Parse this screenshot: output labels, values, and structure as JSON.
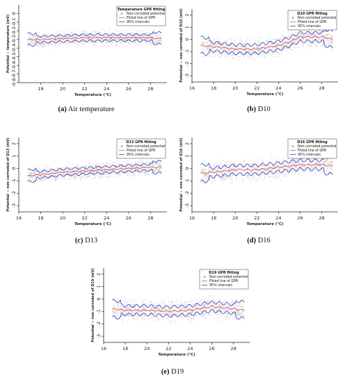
{
  "chart_data": [
    {
      "type": "scatter",
      "caption": {
        "label": "(a)",
        "text": "Air temperature"
      },
      "legend": {
        "title": "Temperature GPR fitting",
        "position": "top-right",
        "items": [
          "Non-corroded potential",
          "Fitted line of GPR",
          "95% intervals"
        ]
      },
      "xlabel": "Temperature (℃)",
      "ylabel": "Potential − temperature (mV)",
      "xlim": [
        16,
        29.5
      ],
      "ylim": [
        -0.8,
        0.1
      ],
      "xticks": [
        "18",
        "20",
        "22",
        "24",
        "26",
        "28"
      ],
      "yticks": [
        "-0.8",
        "-0.7",
        "-0.6",
        "-0.5",
        "-0.4",
        "-0.3",
        "-0.2",
        "-0.1",
        "0"
      ],
      "ytick_values": [
        -0.8,
        -0.7,
        -0.6,
        -0.5,
        -0.4,
        -0.3,
        -0.2,
        -0.1,
        0
      ],
      "x_range": [
        16.8,
        29.0
      ],
      "fit": {
        "x": [
          16.8,
          18,
          20,
          22,
          24,
          26,
          28,
          29
        ],
        "y": [
          -0.3,
          -0.3,
          -0.29,
          -0.28,
          -0.28,
          -0.28,
          -0.28,
          -0.29
        ]
      },
      "band_width": 0.035,
      "scatter_spread": 0.07
    },
    {
      "type": "scatter",
      "caption": {
        "label": "(b)",
        "text": "D10"
      },
      "legend": {
        "title": "D10 GPR fitting",
        "position": "top-right",
        "items": [
          "Non-corroded potential",
          "Fitted line of GPR",
          "95% intervals"
        ]
      },
      "xlabel": "Temperature (℃)",
      "ylabel": "Potential − non corroded of D10 (mV)",
      "xlim": [
        16,
        29.5
      ],
      "ylim": [
        -3.5,
        2.5
      ],
      "xticks": [
        "16",
        "18",
        "20",
        "22",
        "24",
        "26",
        "28"
      ],
      "yticks": [
        "-3",
        "-2",
        "-1",
        "0",
        "1",
        "2"
      ],
      "ytick_values": [
        -3,
        -2,
        -1,
        0,
        1,
        2
      ],
      "x_range": [
        16.8,
        29.0
      ],
      "fit": {
        "x": [
          16.8,
          18,
          20,
          22,
          24,
          25,
          26,
          28,
          29
        ],
        "y": [
          -0.5,
          -0.6,
          -0.8,
          -0.8,
          -0.5,
          -0.2,
          0.2,
          0.2,
          0.0
        ]
      },
      "band_width": 0.35,
      "scatter_spread": 0.7
    },
    {
      "type": "scatter",
      "caption": {
        "label": "(c)",
        "text": "D13"
      },
      "legend": {
        "title": "D13 GPR fitting",
        "position": "top-right",
        "items": [
          "Non-corroded potential",
          "Fitted line of GPR",
          "95% intervals"
        ]
      },
      "xlabel": "Temperature (℃)",
      "ylabel": "Potential − non corroded of D13 (mV)",
      "xlim": [
        16,
        29.5
      ],
      "ylim": [
        -3.5,
        2.5
      ],
      "xticks": [
        "16",
        "18",
        "20",
        "22",
        "24",
        "26",
        "28"
      ],
      "yticks": [
        "-3",
        "-2",
        "-1",
        "0",
        "1",
        "2"
      ],
      "ytick_values": [
        -3,
        -2,
        -1,
        0,
        1,
        2
      ],
      "x_range": [
        16.8,
        29.0
      ],
      "fit": {
        "x": [
          16.8,
          18,
          20,
          22,
          24,
          26,
          28,
          29
        ],
        "y": [
          -0.6,
          -0.5,
          -0.3,
          -0.2,
          -0.1,
          0.0,
          0.1,
          0.1
        ]
      },
      "band_width": 0.25,
      "scatter_spread": 0.5
    },
    {
      "type": "scatter",
      "caption": {
        "label": "(d)",
        "text": "D16"
      },
      "legend": {
        "title": "D16 GPR fitting",
        "position": "top-right",
        "items": [
          "Non-corroded potential",
          "Fitted line of GPR",
          "95% intervals"
        ]
      },
      "xlabel": "Temperature (℃)",
      "ylabel": "Potential − non corroded of D16 (mV)",
      "xlim": [
        16,
        29.5
      ],
      "ylim": [
        -3.5,
        2.5
      ],
      "xticks": [
        "16",
        "18",
        "20",
        "22",
        "24",
        "26",
        "28"
      ],
      "yticks": [
        "-3",
        "-2",
        "-1",
        "0",
        "1",
        "2"
      ],
      "ytick_values": [
        -3,
        -2,
        -1,
        0,
        1,
        2
      ],
      "x_range": [
        16.8,
        29.0
      ],
      "fit": {
        "x": [
          16.8,
          18,
          20,
          22,
          24,
          26,
          28,
          29
        ],
        "y": [
          -0.4,
          -0.3,
          -0.1,
          -0.1,
          0.1,
          0.3,
          0.3,
          0.2
        ]
      },
      "band_width": 0.35,
      "scatter_spread": 0.7
    },
    {
      "type": "scatter",
      "caption": {
        "label": "(e)",
        "text": "D19"
      },
      "legend": {
        "title": "D19 GPR fitting",
        "position": "top-right",
        "items": [
          "Non-corroded potential",
          "Fitted line of GPR",
          "95% intervals"
        ]
      },
      "xlabel": "Temperature (℃)",
      "ylabel": "Potential − non corroded of D19 (mV)",
      "xlim": [
        16,
        29.5
      ],
      "ylim": [
        -3.5,
        2.5
      ],
      "xticks": [
        "16",
        "18",
        "20",
        "22",
        "24",
        "26",
        "28"
      ],
      "yticks": [
        "-3",
        "-2",
        "-1",
        "0",
        "1",
        "2"
      ],
      "ytick_values": [
        -3,
        -2,
        -1,
        0,
        1,
        2
      ],
      "x_range": [
        16.8,
        29.0
      ],
      "fit": {
        "x": [
          16.8,
          18,
          20,
          22,
          24,
          26,
          28,
          29
        ],
        "y": [
          -0.8,
          -0.9,
          -0.9,
          -1.0,
          -0.9,
          -0.6,
          -0.8,
          -0.9
        ]
      },
      "band_width": 0.35,
      "scatter_spread": 0.7
    }
  ],
  "colors": {
    "points": "#9a9a9a",
    "fit": "#e0505a",
    "interval": "#2b35c8",
    "axis": "#222222"
  }
}
